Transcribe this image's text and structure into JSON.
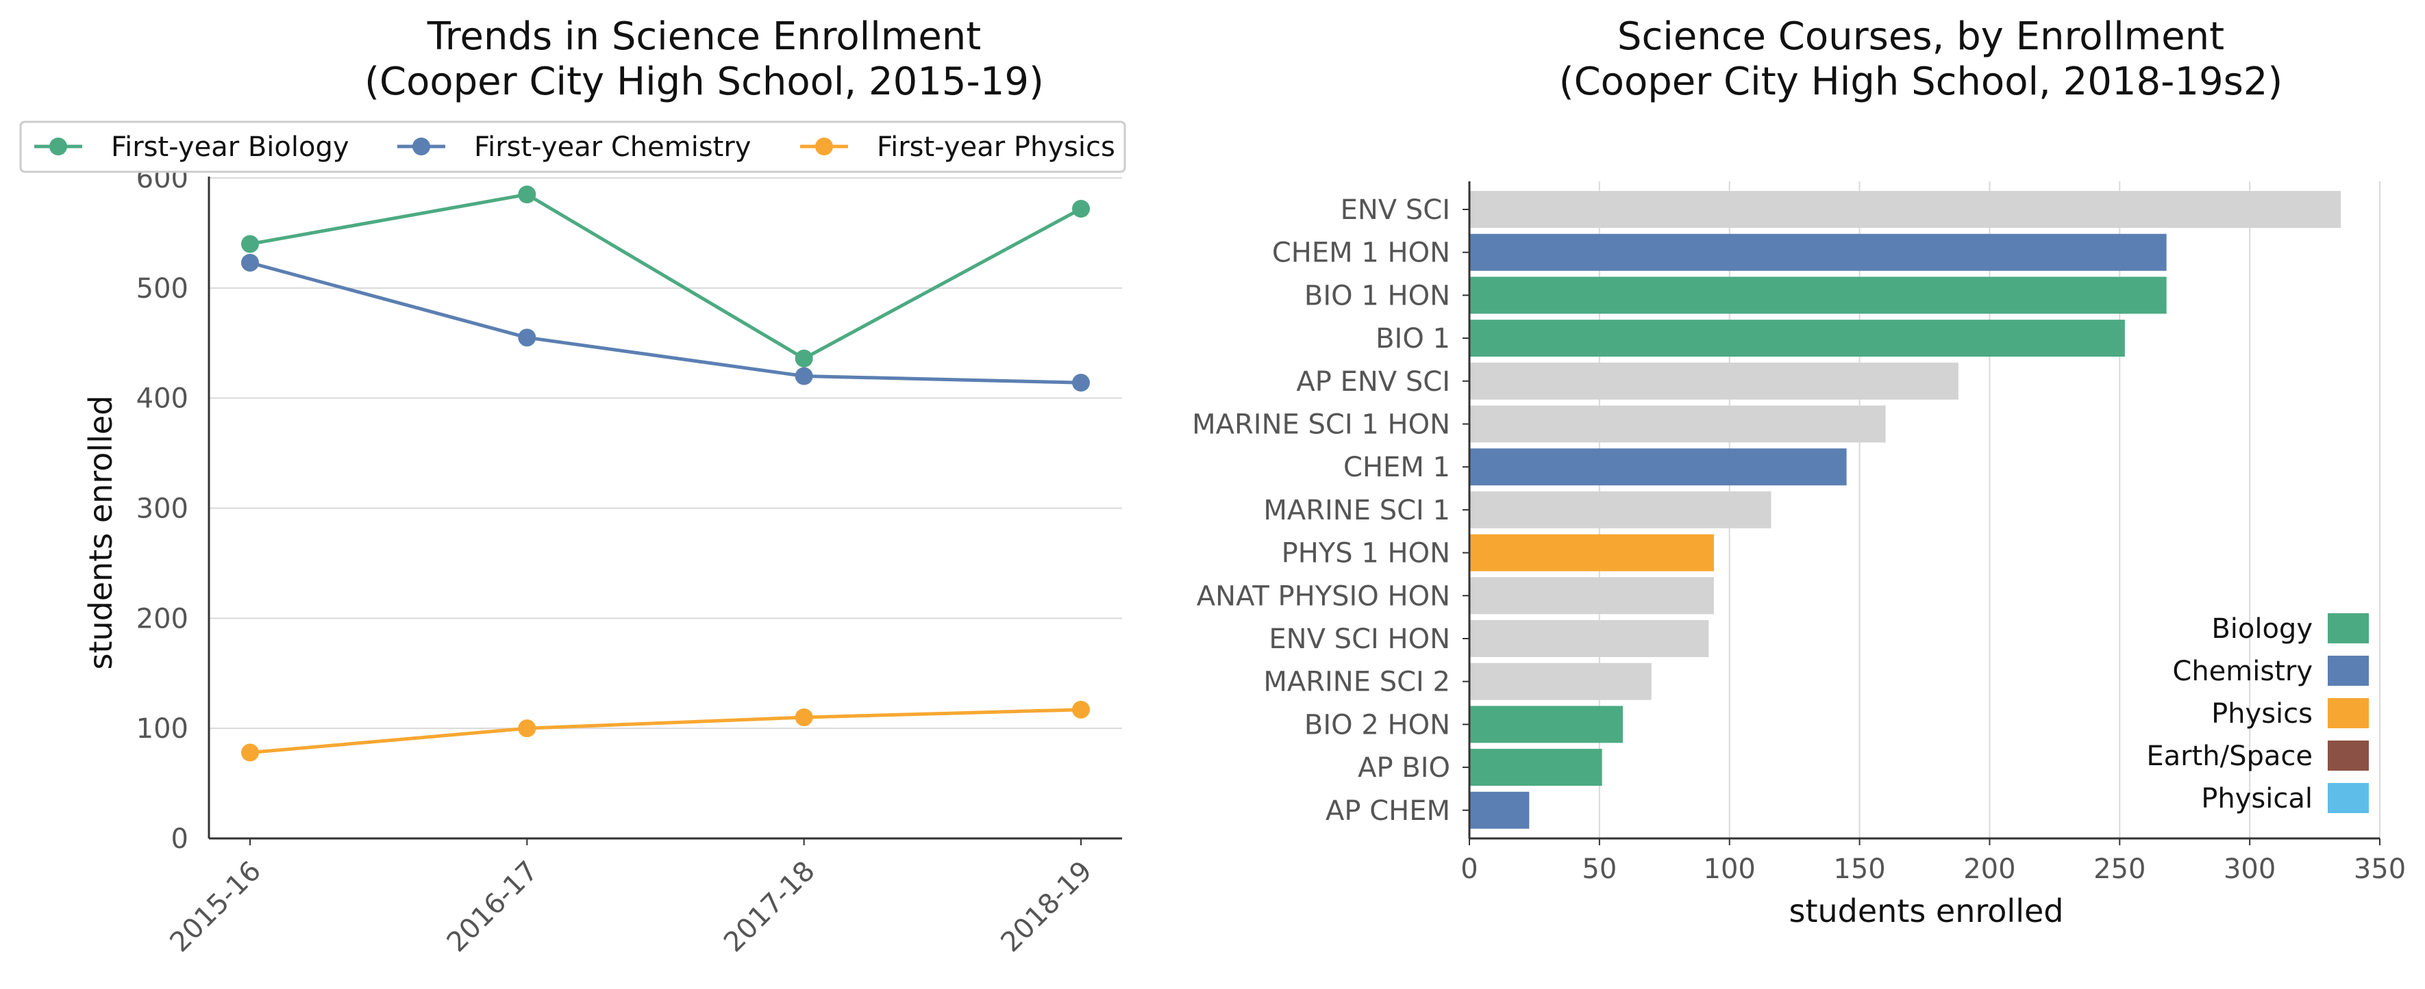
{
  "chart_data": [
    {
      "type": "line",
      "title": "Trends in Science Enrollment",
      "subtitle": "(Cooper City High School, 2015-19)",
      "xlabel": "",
      "ylabel": "students enrolled",
      "categories": [
        "2015-16",
        "2016-17",
        "2017-18",
        "2018-19"
      ],
      "ylim": [
        0,
        600
      ],
      "yticks": [
        "0",
        "100",
        "200",
        "300",
        "400",
        "500",
        "600"
      ],
      "grid": "horizontal",
      "legend_position": "top",
      "series": [
        {
          "name": "First-year Biology",
          "color": "#4caa82",
          "values": [
            540,
            585,
            436,
            572
          ]
        },
        {
          "name": "First-year Chemistry",
          "color": "#5b7fb2",
          "values": [
            523,
            455,
            420,
            414
          ]
        },
        {
          "name": "First-year Physics",
          "color": "#f7a731",
          "values": [
            78,
            100,
            110,
            117
          ]
        }
      ]
    },
    {
      "type": "bar",
      "orientation": "horizontal",
      "title": "Science Courses, by Enrollment",
      "subtitle": "(Cooper City High School, 2018-19s2)",
      "xlabel": "students enrolled",
      "ylabel": "",
      "xlim": [
        0,
        350
      ],
      "xticks": [
        "0",
        "50",
        "100",
        "150",
        "200",
        "250",
        "300",
        "350"
      ],
      "grid": "vertical",
      "legend_position": "lower-right",
      "bars": [
        {
          "label": "ENV SCI",
          "value": 335,
          "category": "Other"
        },
        {
          "label": "CHEM 1 HON",
          "value": 268,
          "category": "Chemistry"
        },
        {
          "label": "BIO 1 HON",
          "value": 268,
          "category": "Biology"
        },
        {
          "label": "BIO 1",
          "value": 252,
          "category": "Biology"
        },
        {
          "label": "AP ENV SCI",
          "value": 188,
          "category": "Other"
        },
        {
          "label": "MARINE SCI 1 HON",
          "value": 160,
          "category": "Other"
        },
        {
          "label": "CHEM 1",
          "value": 145,
          "category": "Chemistry"
        },
        {
          "label": "MARINE SCI 1",
          "value": 116,
          "category": "Other"
        },
        {
          "label": "PHYS 1 HON",
          "value": 94,
          "category": "Physics"
        },
        {
          "label": "ANAT PHYSIO HON",
          "value": 94,
          "category": "Other"
        },
        {
          "label": "ENV SCI HON",
          "value": 92,
          "category": "Other"
        },
        {
          "label": "MARINE SCI 2",
          "value": 70,
          "category": "Other"
        },
        {
          "label": "BIO 2 HON",
          "value": 59,
          "category": "Biology"
        },
        {
          "label": "AP BIO",
          "value": 51,
          "category": "Biology"
        },
        {
          "label": "AP CHEM",
          "value": 23,
          "category": "Chemistry"
        }
      ],
      "category_colors": {
        "Biology": "#4caa82",
        "Chemistry": "#5b7fb2",
        "Physics": "#f7a731",
        "Earth/Space": "#8b5144",
        "Physical": "#5fbde9",
        "Other": "#d3d3d3"
      },
      "legend": [
        "Biology",
        "Chemistry",
        "Physics",
        "Earth/Space",
        "Physical"
      ]
    }
  ]
}
